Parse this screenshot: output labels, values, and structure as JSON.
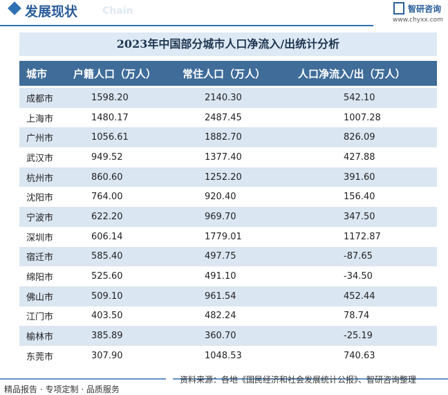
{
  "header": {
    "section": "发展现状",
    "section_en": "Chain",
    "logo": "智研咨询",
    "url": "www.chyxx.com"
  },
  "table": {
    "title": "2023年中国部分城市人口净流入/出统计分析",
    "columns": [
      "城市",
      "户籍人口（万人）",
      "常住人口（万人）",
      "人口净流入/出（万人）"
    ],
    "rows": [
      [
        "成都市",
        "1598.20",
        "2140.30",
        "542.10"
      ],
      [
        "上海市",
        "1480.17",
        "2487.45",
        "1007.28"
      ],
      [
        "广州市",
        "1056.61",
        "1882.70",
        "826.09"
      ],
      [
        "武汉市",
        "949.52",
        "1377.40",
        "427.88"
      ],
      [
        "杭州市",
        "860.60",
        "1252.20",
        "391.60"
      ],
      [
        "沈阳市",
        "764.00",
        "920.40",
        "156.40"
      ],
      [
        "宁波市",
        "622.20",
        "969.70",
        "347.50"
      ],
      [
        "深圳市",
        "606.14",
        "1779.01",
        "1172.87"
      ],
      [
        "宿迁市",
        "585.40",
        "497.75",
        "-87.65"
      ],
      [
        "绵阳市",
        "525.60",
        "491.10",
        "-34.50"
      ],
      [
        "佛山市",
        "509.10",
        "961.54",
        "452.44"
      ],
      [
        "江门市",
        "403.50",
        "482.24",
        "78.74"
      ],
      [
        "榆林市",
        "385.89",
        "360.70",
        "-25.19"
      ],
      [
        "东莞市",
        "307.90",
        "1048.53",
        "740.63"
      ]
    ]
  },
  "footer": {
    "slogan": "精品报告 · 专项定制 · 品质服务",
    "source": "资料来源：各地《国民经济和社会发展统计公报》、智研咨询整理"
  }
}
